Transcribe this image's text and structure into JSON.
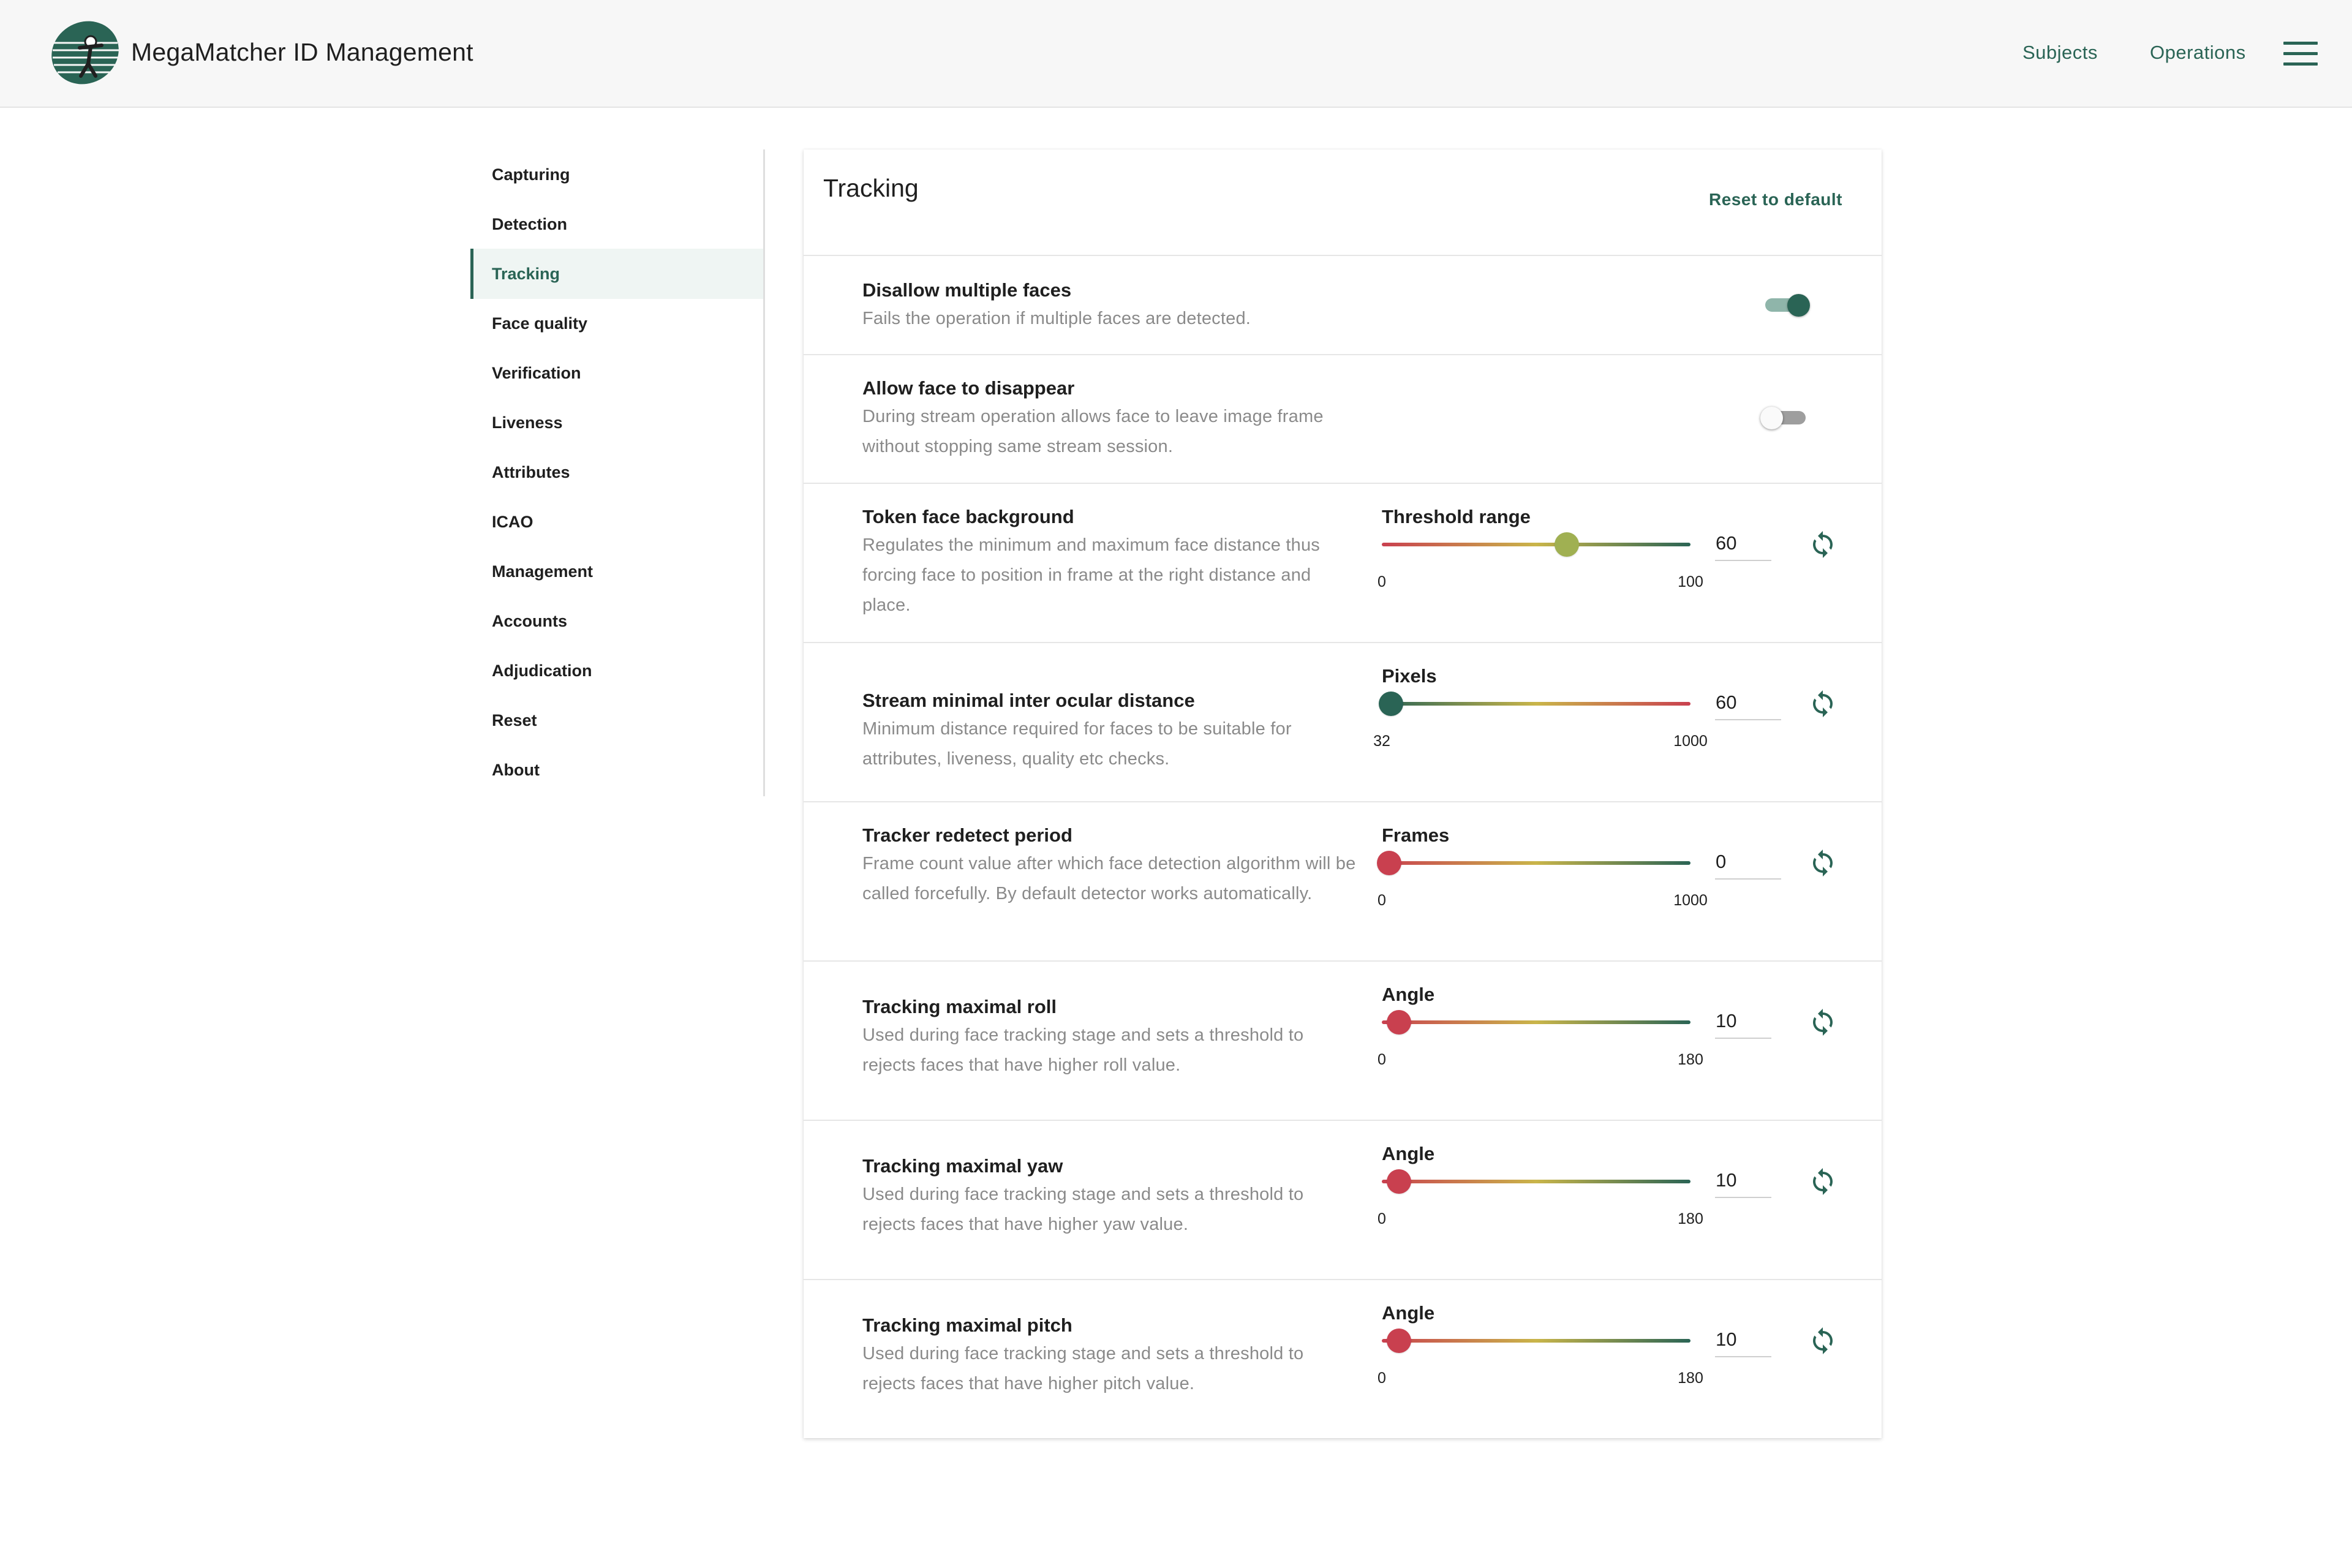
{
  "header": {
    "app_title": "MegaMatcher ID Management",
    "nav": {
      "subjects": "Subjects",
      "operations": "Operations"
    },
    "logo_icon": "megamatcher-logo",
    "menu_icon": "hamburger-menu-icon"
  },
  "sidebar": {
    "items": [
      {
        "label": "Capturing"
      },
      {
        "label": "Detection"
      },
      {
        "label": "Tracking",
        "active": true
      },
      {
        "label": "Face quality"
      },
      {
        "label": "Verification"
      },
      {
        "label": "Liveness"
      },
      {
        "label": "Attributes"
      },
      {
        "label": "ICAO"
      },
      {
        "label": "Management"
      },
      {
        "label": "Accounts"
      },
      {
        "label": "Adjudication"
      },
      {
        "label": "Reset"
      },
      {
        "label": "About"
      }
    ]
  },
  "main": {
    "title": "Tracking",
    "reset_label": "Reset to default",
    "toggles": [
      {
        "title": "Disallow multiple faces",
        "description": "Fails the operation if multiple faces are detected.",
        "on": true
      },
      {
        "title": "Allow face to disappear",
        "description": "During stream operation allows face to leave image frame without stopping same stream session.",
        "on": false
      }
    ],
    "sliders": [
      {
        "title": "Token face background",
        "description": "Regulates the minimum and maximum face distance thus forcing face to position in frame at the right distance and place.",
        "label": "Threshold range",
        "min": "0",
        "max": "100",
        "value": "60",
        "gradient": "red-green",
        "thumb_color": "#a0b052"
      },
      {
        "title": "Stream minimal inter ocular distance",
        "description": "Minimum distance required for faces to be suitable for attributes, liveness, quality etc checks.",
        "label": "Pixels",
        "min": "32",
        "max": "1000",
        "value": "60",
        "gradient": "green-red",
        "thumb_color": "#2a6455"
      },
      {
        "title": "Tracker redetect period",
        "description": "Frame count value after which face detection algorithm will be called forcefully. By default detector works automatically.",
        "label": "Frames",
        "min": "0",
        "max": "1000",
        "value": "0",
        "gradient": "red-green",
        "thumb_color": "#c9404f"
      },
      {
        "title": "Tracking maximal roll",
        "description": "Used during face tracking stage and sets a threshold to rejects faces that have higher roll value.",
        "label": "Angle",
        "min": "0",
        "max": "180",
        "value": "10",
        "gradient": "red-green",
        "thumb_color": "#c9404f"
      },
      {
        "title": "Tracking maximal yaw",
        "description": "Used during face tracking stage and sets a threshold to rejects faces that have higher yaw value.",
        "label": "Angle",
        "min": "0",
        "max": "180",
        "value": "10",
        "gradient": "red-green",
        "thumb_color": "#c9404f"
      },
      {
        "title": "Tracking maximal pitch",
        "description": "Used during face tracking stage and sets a threshold to rejects faces that have higher pitch value.",
        "label": "Angle",
        "min": "0",
        "max": "180",
        "value": "10",
        "gradient": "red-green",
        "thumb_color": "#c9404f"
      }
    ]
  },
  "colors": {
    "accent": "#2a6455",
    "accent_light": "#8fb5aa",
    "danger": "#c9404f",
    "mid": "#c9b54a"
  }
}
